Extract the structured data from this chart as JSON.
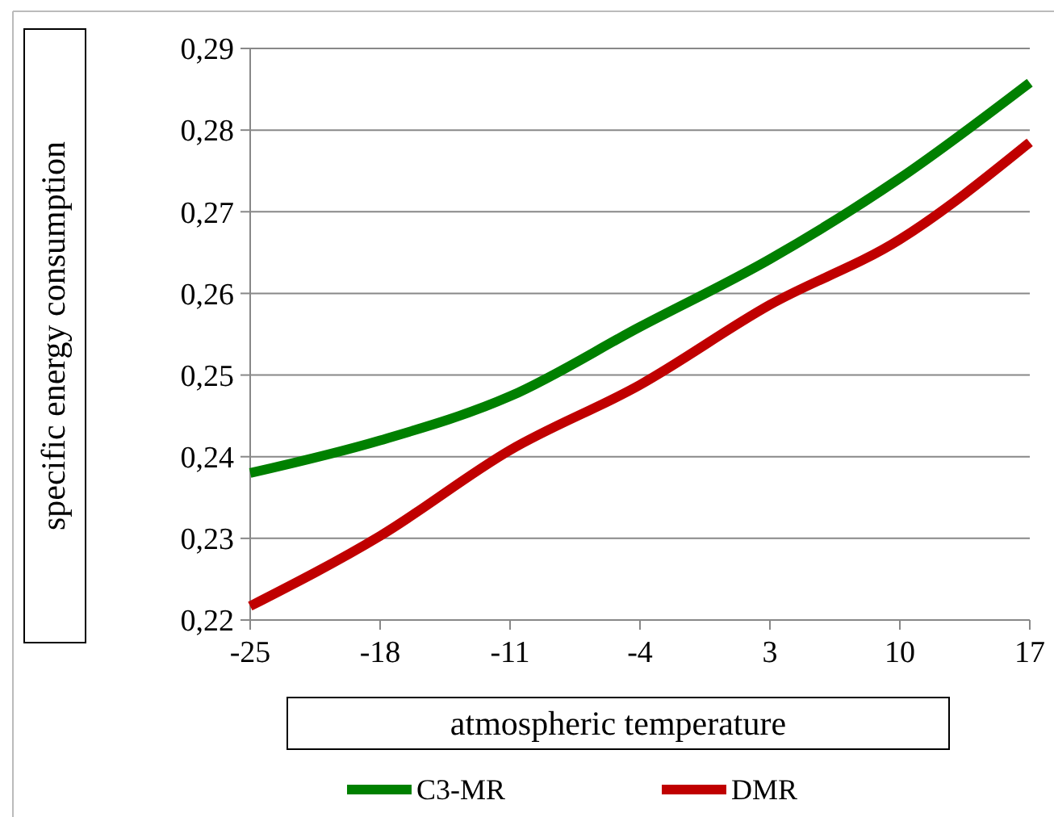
{
  "chart_data": {
    "type": "line",
    "xlabel": "atmospheric temperature",
    "ylabel": "specific energy consumption",
    "x": [
      -25,
      -18,
      -11,
      -4,
      3,
      10,
      17
    ],
    "xlim": [
      -25,
      17
    ],
    "xticks": [
      -25,
      -18,
      -11,
      -4,
      3,
      10,
      17
    ],
    "ylim": [
      0.22,
      0.29
    ],
    "yticks": [
      {
        "value": 0.22,
        "label": "0,22"
      },
      {
        "value": 0.23,
        "label": "0,23"
      },
      {
        "value": 0.24,
        "label": "0,24"
      },
      {
        "value": 0.25,
        "label": "0,25"
      },
      {
        "value": 0.26,
        "label": "0,26"
      },
      {
        "value": 0.27,
        "label": "0,27"
      },
      {
        "value": 0.28,
        "label": "0,28"
      },
      {
        "value": 0.29,
        "label": "0,29"
      }
    ],
    "grid": "y",
    "legend": "bottom",
    "marker": "none",
    "line_style": "solid",
    "series": [
      {
        "name": "C3-MR",
        "color": "#008000",
        "values": [
          0.238,
          0.242,
          0.2474,
          0.2559,
          0.2642,
          0.2741,
          0.2858
        ]
      },
      {
        "name": "DMR",
        "color": "#c00000",
        "values": [
          0.2217,
          0.2303,
          0.2408,
          0.2488,
          0.2586,
          0.2666,
          0.2785
        ]
      }
    ]
  }
}
